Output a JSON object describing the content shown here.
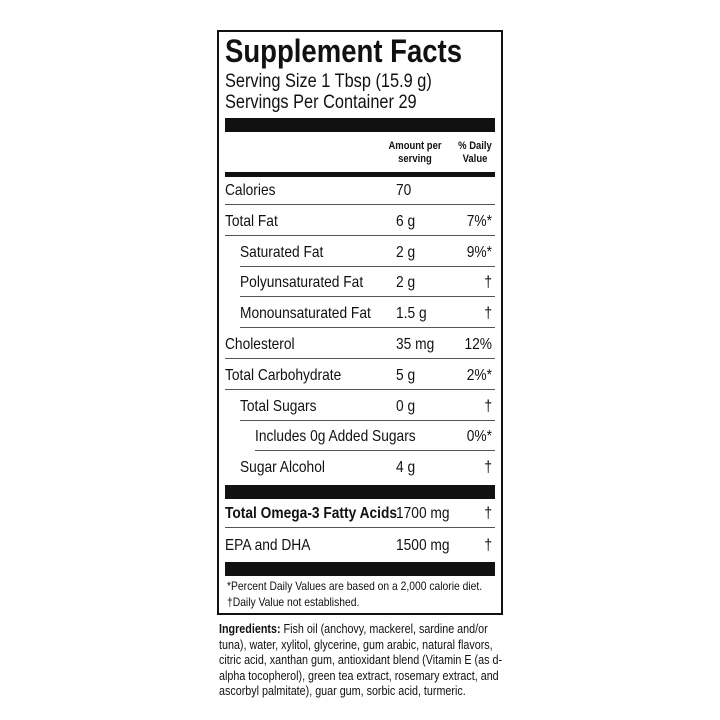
{
  "title": "Supplement Facts",
  "serving_size": "Serving Size 1 Tbsp (15.9 g)",
  "servings_per_container": "Servings Per Container 29",
  "header": {
    "amount": "Amount per serving",
    "daily_value": "% Daily Value"
  },
  "rows": [
    {
      "name": "Calories",
      "amount": "70",
      "indent": 0
    },
    {
      "name": "Total Fat",
      "amount": "6 g",
      "dv": "7%*",
      "indent": 0
    },
    {
      "name": "Saturated Fat",
      "amount": "2 g",
      "dv": "9%*",
      "indent": 1
    },
    {
      "name": "Polyunsaturated Fat",
      "amount": "2 g",
      "dv": "†",
      "indent": 1
    },
    {
      "name": "Monounsaturated Fat",
      "amount": "1.5 g",
      "dv": "†",
      "indent": 1
    },
    {
      "name": "Cholesterol",
      "amount": "35 mg",
      "dv": "12%",
      "indent": 0
    },
    {
      "name": "Total Carbohydrate",
      "amount": "5 g",
      "dv": "2%*",
      "indent": 0
    },
    {
      "name": "Total Sugars",
      "amount": "0 g",
      "dv": "†",
      "indent": 1
    },
    {
      "name": "Includes 0g Added Sugars",
      "dv": "0%*",
      "indent": 2
    },
    {
      "name": "Sugar Alcohol",
      "amount": "4 g",
      "dv": "†",
      "indent": 1
    }
  ],
  "omega_rows": [
    {
      "name": "Total Omega-3 Fatty Acids",
      "amount": "1700 mg",
      "dv": "†",
      "bold": true
    },
    {
      "name": "EPA and DHA",
      "amount": "1500 mg",
      "dv": "†"
    }
  ],
  "footnotes": [
    "*Percent Daily Values are based on a 2,000 calorie diet.",
    "†Daily Value not established."
  ],
  "ingredients": {
    "label": "Ingredients:",
    "text": "Fish oil (anchovy, mackerel, sardine and/or tuna), water, xylitol, glycerine, gum arabic, natural flavors, citric acid, xanthan gum, antioxidant blend (Vitamin E (as d-alpha tocopherol), green tea extract, rosemary extract, and ascorbyl palmitate), guar gum, sorbic acid, turmeric."
  }
}
